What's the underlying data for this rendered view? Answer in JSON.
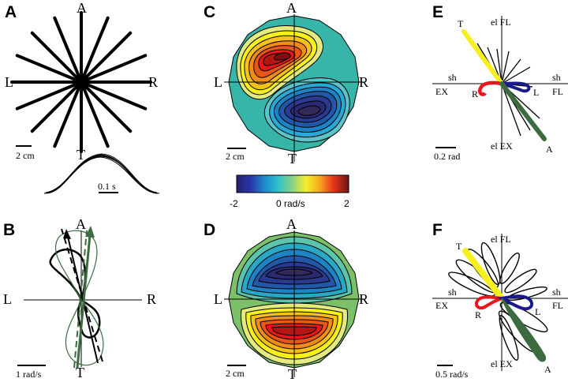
{
  "panels": {
    "A": {
      "letter": "A",
      "top": "A",
      "left": "L",
      "right": "R",
      "bottom": "T",
      "scale": "2 cm",
      "time_scale": "0.1 s"
    },
    "B": {
      "letter": "B",
      "top": "A",
      "left": "L",
      "right": "R",
      "bottom": "T",
      "scale": "1 rad/s"
    },
    "C": {
      "letter": "C",
      "top": "A",
      "left": "L",
      "right": "R",
      "bottom": "T",
      "scale": "2 cm"
    },
    "D": {
      "letter": "D",
      "top": "A",
      "left": "L",
      "right": "R",
      "bottom": "T",
      "scale": "2 cm"
    },
    "E": {
      "letter": "E",
      "el_fl": "el FL",
      "el_ex": "el EX",
      "sh_left": "sh",
      "ex_left": "EX",
      "sh_right": "sh",
      "fl_right": "FL",
      "T": "T",
      "R": "R",
      "L": "L",
      "A": "A",
      "scale": "0.2 rad"
    },
    "F": {
      "letter": "F",
      "el_fl": "el FL",
      "el_ex": "el EX",
      "sh_left": "sh",
      "ex_left": "EX",
      "sh_right": "sh",
      "fl_right": "FL",
      "T": "T",
      "R": "R",
      "L": "L",
      "A": "A",
      "scale": "0.5 rad/s"
    }
  },
  "colorbar": {
    "min_label": "-2",
    "mid_label": "0 rad/s",
    "max_label": "2"
  },
  "colors": {
    "red": "#e8171b",
    "yellow": "#f7f01c",
    "blue": "#1b1a8c",
    "green": "#3b6b3f",
    "teal": "#36b5a8",
    "light_green": "#7cc06a"
  }
}
